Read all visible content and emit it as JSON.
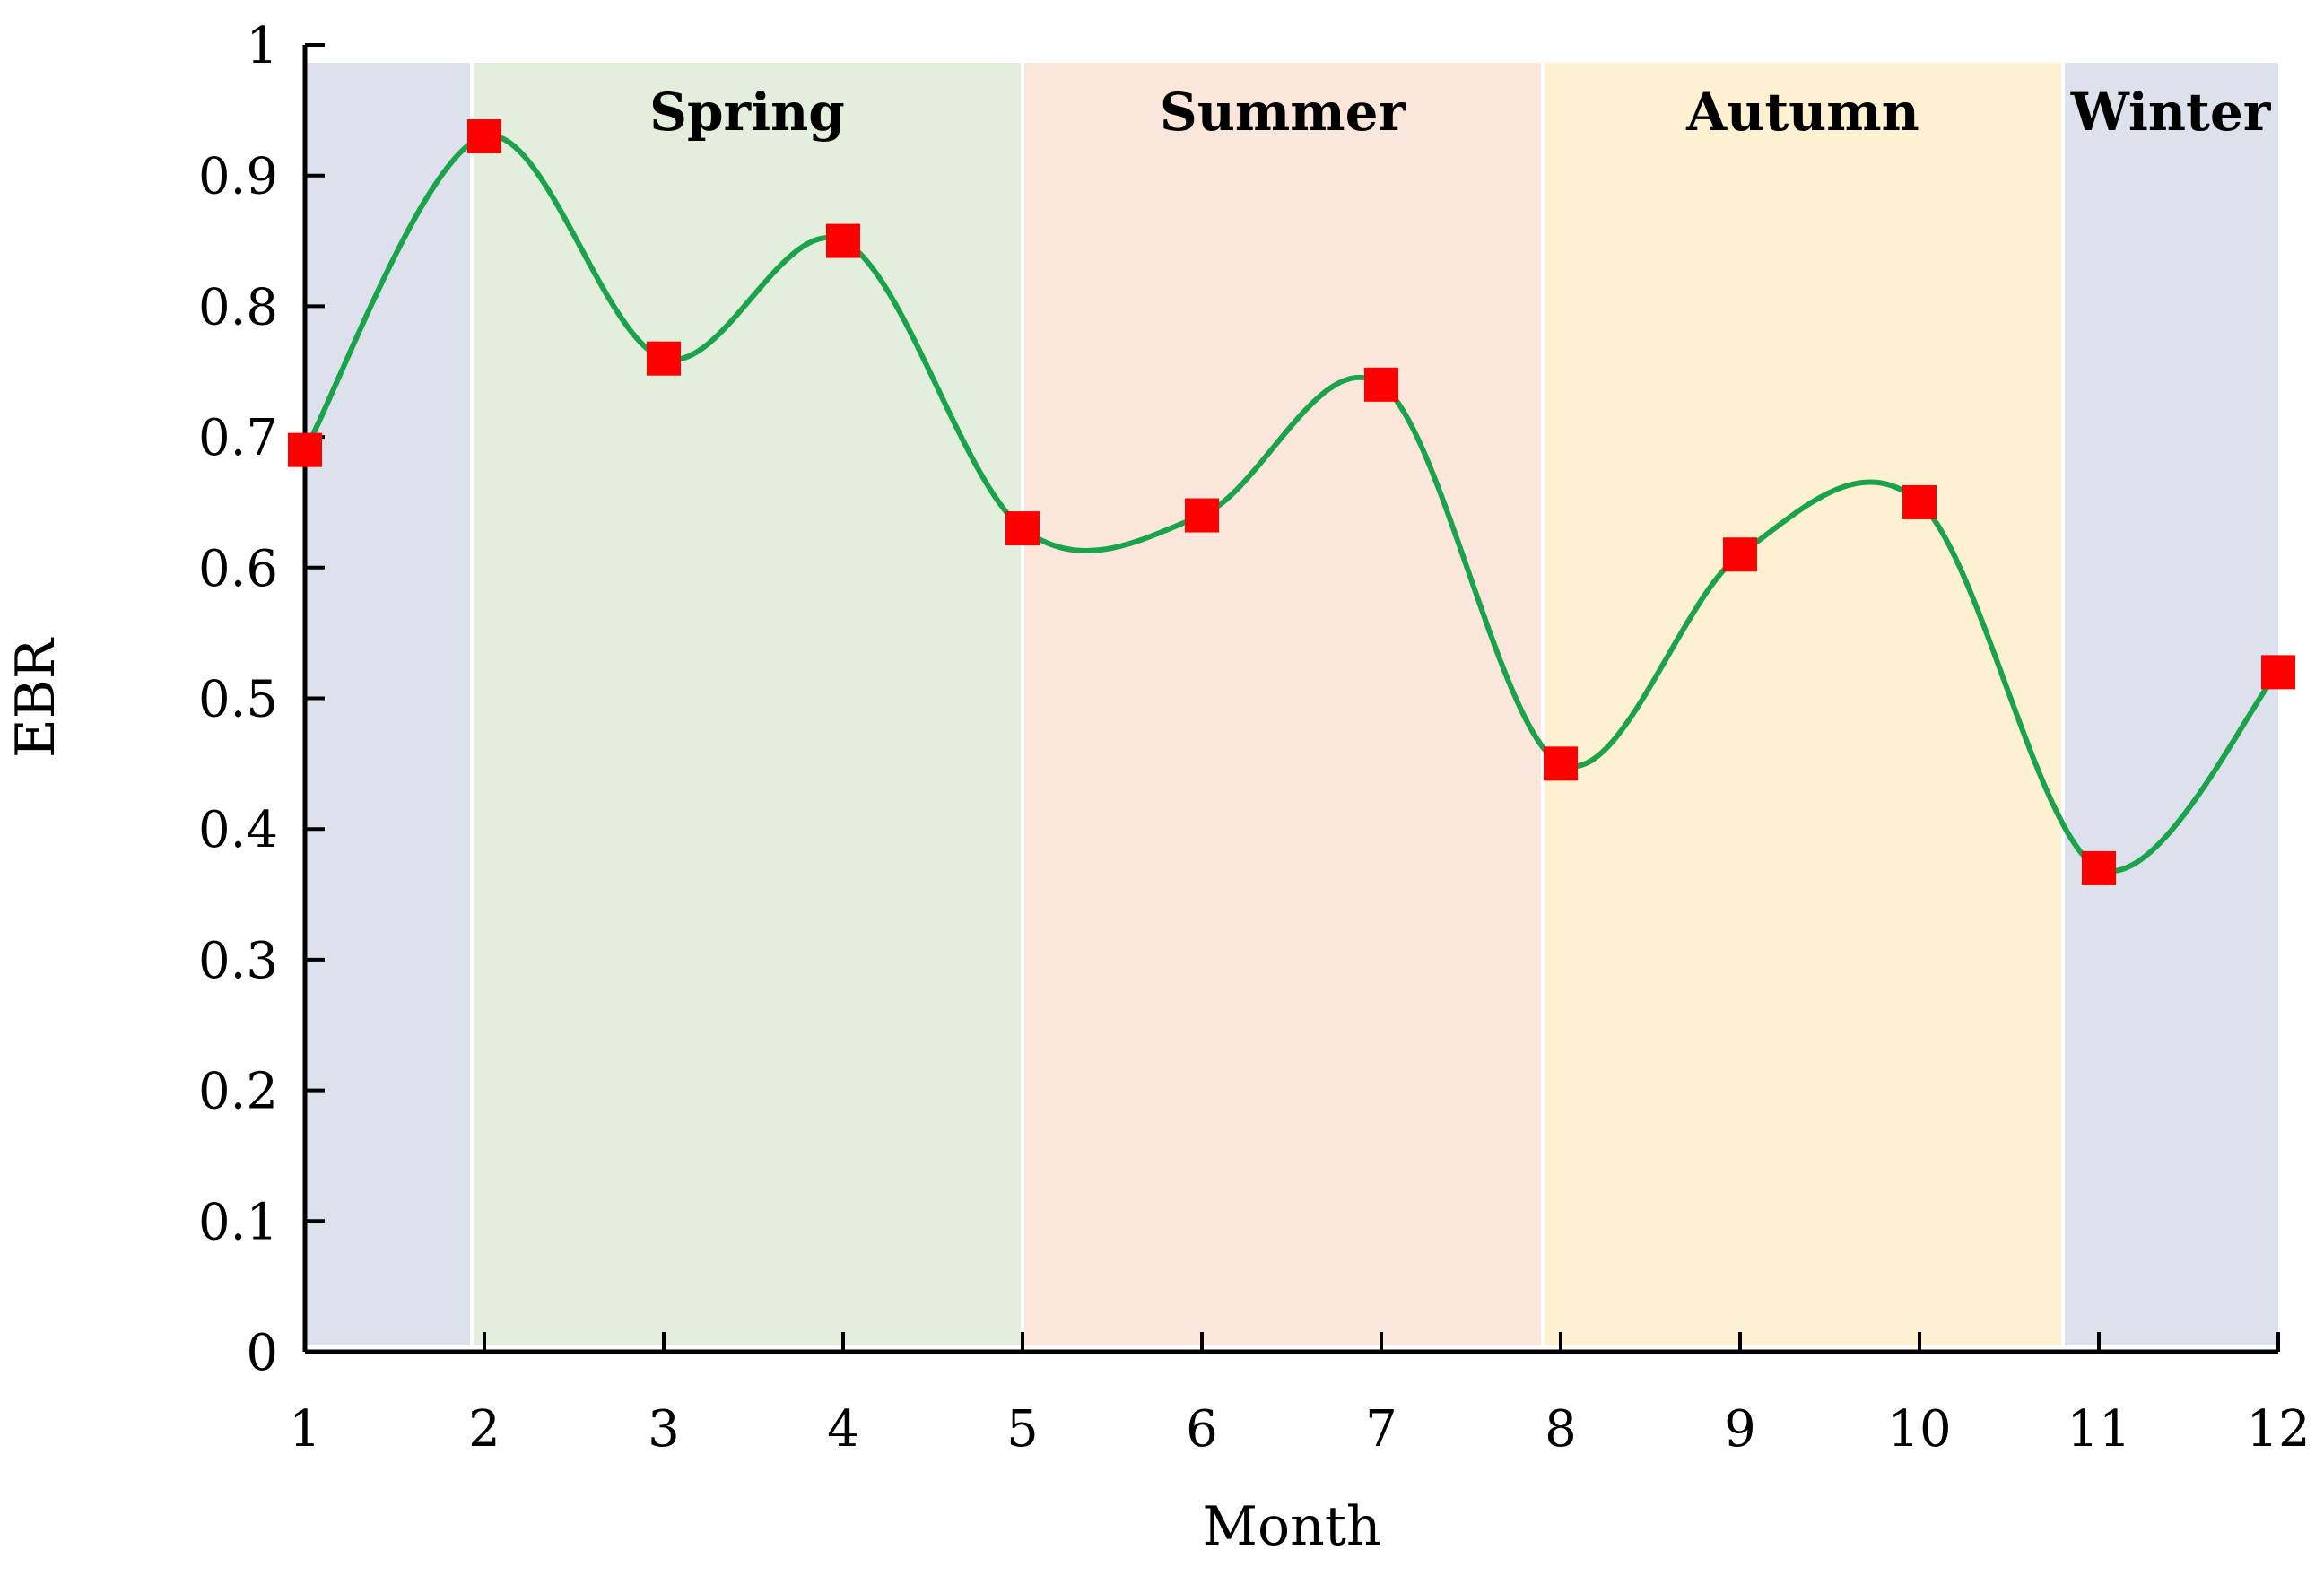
{
  "chart_data": {
    "type": "line",
    "xlabel": "Month",
    "ylabel": "EBR",
    "xlim": [
      1,
      12
    ],
    "ylim": [
      0,
      1
    ],
    "x_ticks": [
      "1",
      "2",
      "3",
      "4",
      "5",
      "6",
      "7",
      "8",
      "9",
      "10",
      "11",
      "12"
    ],
    "y_ticks": [
      "0",
      "0.1",
      "0.2",
      "0.3",
      "0.4",
      "0.5",
      "0.6",
      "0.7",
      "0.8",
      "0.9",
      "1"
    ],
    "grid": false,
    "legend": "none",
    "series": [
      {
        "x": [
          1,
          2,
          3,
          4,
          5,
          6,
          7,
          8,
          9,
          10,
          11,
          12
        ],
        "values": [
          0.69,
          0.93,
          0.76,
          0.85,
          0.63,
          0.64,
          0.74,
          0.45,
          0.61,
          0.65,
          0.37,
          0.52
        ],
        "line_color": "#1aa34a",
        "marker_color": "#ff0000",
        "marker": "square",
        "smooth": true
      }
    ],
    "season_bands": [
      {
        "label": "",
        "from": 1,
        "to": 1.93,
        "color": "#dde1eb"
      },
      {
        "label": "Spring",
        "from": 1.93,
        "to": 5.0,
        "color": "#e3efdc"
      },
      {
        "label": "Summer",
        "from": 5.0,
        "to": 7.9,
        "color": "#fae6da"
      },
      {
        "label": "Autumn",
        "from": 7.9,
        "to": 10.8,
        "color": "#fdf1d2"
      },
      {
        "label": "Winter",
        "from": 10.8,
        "to": 12,
        "color": "#dde1eb"
      }
    ]
  }
}
